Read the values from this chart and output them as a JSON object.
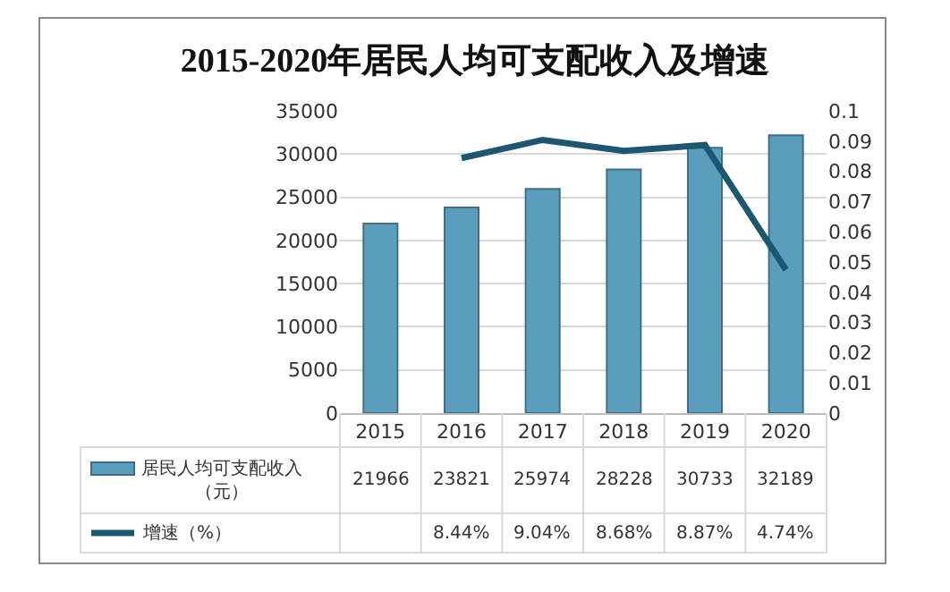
{
  "chart_data": {
    "type": "bar",
    "title": "2015-2020年居民人均可支配收入及增速",
    "categories": [
      "2015",
      "2016",
      "2017",
      "2018",
      "2019",
      "2020"
    ],
    "series": [
      {
        "name": "居民人均可支配收入（元）",
        "color": "#5b9dbd",
        "values": [
          21966,
          23821,
          25974,
          28228,
          30733,
          32189
        ],
        "data_labels": true
      },
      {
        "name": "增速（%）",
        "type": "line",
        "axis": "y2",
        "color": "#1b5870",
        "values": [
          null,
          0.0844,
          0.0904,
          0.0868,
          0.0887,
          0.0474
        ],
        "value_labels": [
          null,
          "8.44%",
          "9.04%",
          "8.68%",
          "8.87%",
          "4.74%"
        ],
        "marker": "none",
        "line_style": "solid"
      }
    ],
    "ylim": [
      0,
      35000
    ],
    "yticks": [
      0,
      5000,
      10000,
      15000,
      20000,
      25000,
      30000,
      35000
    ],
    "y2lim": [
      0,
      0.1
    ],
    "y2ticks": [
      0,
      0.01,
      0.02,
      0.03,
      0.04,
      0.05,
      0.06,
      0.07,
      0.08,
      0.09,
      0.1
    ],
    "grid": "y",
    "legend": "bottom left"
  }
}
